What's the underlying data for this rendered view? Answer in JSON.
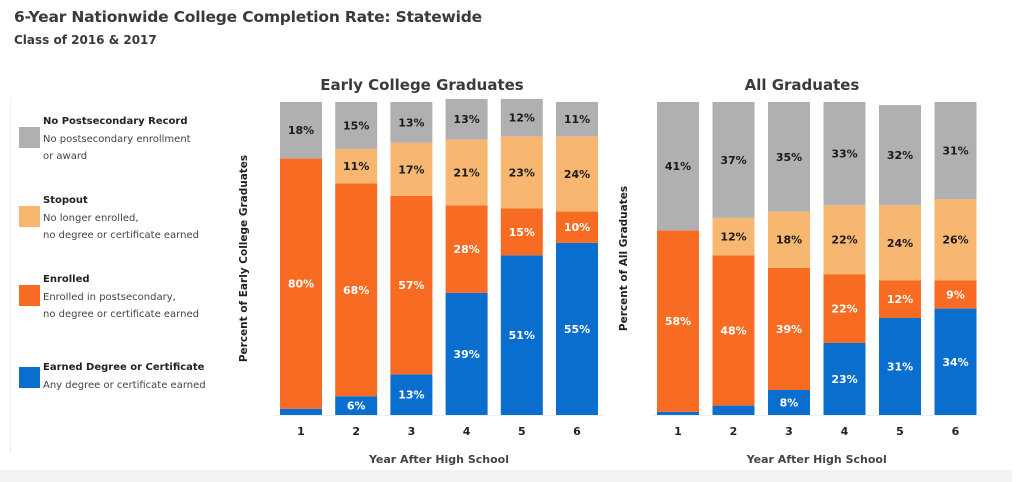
{
  "header": {
    "title": "6-Year Nationwide College Completion Rate: Statewide",
    "subtitle": "Class of 2016 & 2017"
  },
  "legend": {
    "items": [
      {
        "key": "none",
        "title": "No Postsecondary Record",
        "desc1": "No postsecondary enrollment",
        "desc2": "or award",
        "color": "#b0b0b2"
      },
      {
        "key": "stopout",
        "title": "Stopout",
        "desc1": "No longer enrolled,",
        "desc2": "no degree or certificate earned",
        "color": "#f7b771"
      },
      {
        "key": "enrolled",
        "title": "Enrolled",
        "desc1": "Enrolled in postsecondary,",
        "desc2": "no degree or certificate earned",
        "color": "#f76b22"
      },
      {
        "key": "earned",
        "title": "Earned Degree or Certificate",
        "desc1": "Any degree or certificate earned",
        "desc2": "",
        "color": "#0a6ecf"
      }
    ]
  },
  "chart_data": [
    {
      "type": "bar",
      "stacked": true,
      "title": "Early College Graduates",
      "xlabel": "Year After High School",
      "ylabel": "Percent of Early College Graduates",
      "categories": [
        "1",
        "2",
        "3",
        "4",
        "5",
        "6"
      ],
      "ylim": [
        0,
        100
      ],
      "grid": false,
      "series": [
        {
          "name": "Earned Degree or Certificate",
          "key": "earned",
          "values": [
            2,
            6,
            13,
            39,
            51,
            55
          ],
          "labels": [
            "",
            "6%",
            "13%",
            "39%",
            "51%",
            "55%"
          ]
        },
        {
          "name": "Enrolled",
          "key": "enrolled",
          "values": [
            80,
            68,
            57,
            28,
            15,
            10
          ],
          "labels": [
            "80%",
            "68%",
            "57%",
            "28%",
            "15%",
            "10%"
          ]
        },
        {
          "name": "Stopout",
          "key": "stopout",
          "values": [
            0,
            11,
            17,
            21,
            23,
            24
          ],
          "labels": [
            "",
            "11%",
            "17%",
            "21%",
            "23%",
            "24%"
          ]
        },
        {
          "name": "No Postsecondary Record",
          "key": "none",
          "values": [
            18,
            15,
            13,
            13,
            12,
            11
          ],
          "labels": [
            "18%",
            "15%",
            "13%",
            "13%",
            "12%",
            "11%"
          ]
        }
      ]
    },
    {
      "type": "bar",
      "stacked": true,
      "title": "All Graduates",
      "xlabel": "Year After High School",
      "ylabel": "Percent of All Graduates",
      "categories": [
        "1",
        "2",
        "3",
        "4",
        "5",
        "6"
      ],
      "ylim": [
        0,
        100
      ],
      "grid": false,
      "series": [
        {
          "name": "Earned Degree or Certificate",
          "key": "earned",
          "values": [
            1,
            3,
            8,
            23,
            31,
            34
          ],
          "labels": [
            "",
            "",
            "8%",
            "23%",
            "31%",
            "34%"
          ]
        },
        {
          "name": "Enrolled",
          "key": "enrolled",
          "values": [
            58,
            48,
            39,
            22,
            12,
            9
          ],
          "labels": [
            "58%",
            "48%",
            "39%",
            "22%",
            "12%",
            "9%"
          ]
        },
        {
          "name": "Stopout",
          "key": "stopout",
          "values": [
            0,
            12,
            18,
            22,
            24,
            26
          ],
          "labels": [
            "",
            "12%",
            "18%",
            "22%",
            "24%",
            "26%"
          ]
        },
        {
          "name": "No Postsecondary Record",
          "key": "none",
          "values": [
            41,
            37,
            35,
            33,
            32,
            31
          ],
          "labels": [
            "41%",
            "37%",
            "35%",
            "33%",
            "32%",
            "31%"
          ]
        }
      ]
    }
  ],
  "colors": {
    "label_dark": "#1a1a1a",
    "label_light": "#ffffff",
    "axis_text": "#333333"
  }
}
